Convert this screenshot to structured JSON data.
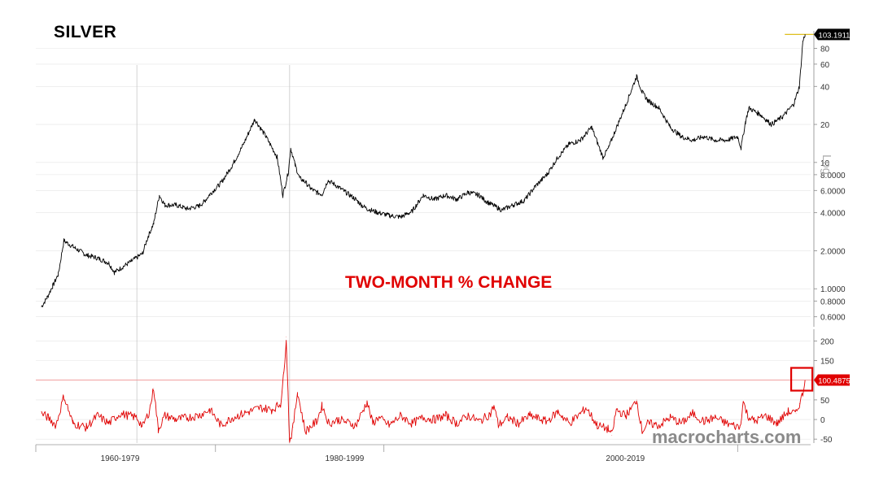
{
  "title": "SILVER",
  "subtitle": "TWO-MONTH % CHANGE",
  "watermark": "macrocharts.com",
  "scale_label": "Log",
  "colors": {
    "price": "#000000",
    "change": "#e00000",
    "grid": "#e5e5e5",
    "last_price_line": "#d9b600",
    "highlight_box": "#e00000"
  },
  "chart_data": [
    {
      "type": "line",
      "name": "Silver price",
      "yscale": "log",
      "ylim": [
        0.5,
        110
      ],
      "yticks": [
        {
          "v": 80,
          "label": "80"
        },
        {
          "v": 60,
          "label": "60"
        },
        {
          "v": 40,
          "label": "40"
        },
        {
          "v": 20,
          "label": "20"
        },
        {
          "v": 10,
          "label": "10"
        },
        {
          "v": 8,
          "label": "8.0000"
        },
        {
          "v": 6,
          "label": "6.0000"
        },
        {
          "v": 4,
          "label": "4.0000"
        },
        {
          "v": 2,
          "label": "2.0000"
        },
        {
          "v": 1,
          "label": "1.0000"
        },
        {
          "v": 0.8,
          "label": "0.8000"
        },
        {
          "v": 0.6,
          "label": "0.6000"
        }
      ],
      "last_value_label": "103.1911",
      "last_value": 103.19,
      "x": [
        1958.0,
        1958.5,
        1959.0,
        1959.5,
        1960.0,
        1961.0,
        1962.0,
        1963.0,
        1964.0,
        1964.5,
        1966.0,
        1967.0,
        1967.5,
        1968.0,
        1968.5,
        1969.0,
        1970.0,
        1971.0,
        1972.0,
        1972.5,
        1973.0,
        1974.0,
        1975.0,
        1976.0,
        1977.0,
        1978.0,
        1979.0,
        1979.5,
        1980.0,
        1980.2,
        1980.6,
        1981.0,
        1981.5,
        1982.0,
        1982.5,
        1983.0,
        1983.5,
        1984.0,
        1985.0,
        1986.0,
        1986.5,
        1987.0,
        1988.0,
        1989.0,
        1990.0,
        1991.0,
        1992.0,
        1993.0,
        1994.0,
        1995.0,
        1996.0,
        1997.0,
        1997.5,
        1998.0,
        1999.0,
        2000.0,
        2001.0,
        2002.0,
        2003.0,
        2004.0,
        2005.0,
        2006.0,
        2007.0,
        2008.0,
        2008.5,
        2009.0,
        2010.0,
        2011.0,
        2011.5,
        2012.0,
        2013.0,
        2014.0,
        2015.0,
        2016.0,
        2017.0,
        2018.0,
        2019.0,
        2020.0,
        2020.3,
        2020.7,
        2021.0,
        2022.0,
        2023.0,
        2024.0,
        2025.0,
        2025.5,
        2025.8,
        2026.0
      ],
      "values": [
        0.72,
        0.85,
        1.05,
        1.3,
        2.4,
        2.1,
        1.85,
        1.75,
        1.6,
        1.35,
        1.65,
        1.9,
        2.6,
        3.3,
        5.5,
        4.6,
        4.6,
        4.3,
        4.5,
        4.9,
        5.6,
        6.9,
        9.5,
        14,
        22,
        16,
        11,
        5.5,
        8.5,
        13,
        9.5,
        7.5,
        7.0,
        6.2,
        5.8,
        5.6,
        7.2,
        6.8,
        5.9,
        5.1,
        4.6,
        4.3,
        4.0,
        3.8,
        3.7,
        4.1,
        5.5,
        5.1,
        5.5,
        5.1,
        5.8,
        5.5,
        5.0,
        4.7,
        4.2,
        4.6,
        5.0,
        6.5,
        8.0,
        11,
        14,
        15,
        19,
        11,
        13,
        17,
        28,
        48,
        36,
        31,
        27,
        19,
        16,
        15,
        16,
        15,
        15,
        16,
        13,
        21,
        27,
        24,
        20,
        23,
        29,
        40,
        90,
        103
      ]
    },
    {
      "type": "line",
      "name": "Two-month % change",
      "ylim": [
        -60,
        230
      ],
      "yticks": [
        {
          "v": 200,
          "label": "200"
        },
        {
          "v": 150,
          "label": "150"
        },
        {
          "v": 100,
          "label": "100"
        },
        {
          "v": 50,
          "label": "50"
        },
        {
          "v": 0,
          "label": "0"
        },
        {
          "v": -50,
          "label": "-50"
        }
      ],
      "last_value_label": "100.4875",
      "last_value": 100.49,
      "x": [
        1958.0,
        1958.6,
        1959.3,
        1960.0,
        1960.8,
        1962.0,
        1963.0,
        1964.0,
        1965.0,
        1966.5,
        1967.0,
        1967.6,
        1968.0,
        1968.4,
        1969.0,
        1970.0,
        1971.0,
        1972.0,
        1973.0,
        1974.0,
        1975.0,
        1976.5,
        1977.5,
        1978.5,
        1979.3,
        1979.6,
        1979.8,
        1980.1,
        1980.4,
        1980.8,
        1981.5,
        1982.5,
        1983.0,
        1983.6,
        1984.5,
        1986.0,
        1987.0,
        1987.5,
        1988.0,
        1989.0,
        1990.0,
        1991.0,
        1992.0,
        1993.0,
        1994.0,
        1995.0,
        1996.0,
        1997.0,
        1998.0,
        1998.3,
        1998.7,
        1999.5,
        2000.5,
        2001.5,
        2003.0,
        2004.0,
        2005.0,
        2006.0,
        2006.5,
        2007.5,
        2008.5,
        2008.8,
        2009.2,
        2010.0,
        2010.5,
        2011.0,
        2011.5,
        2012.0,
        2013.0,
        2014.0,
        2015.0,
        2016.0,
        2017.0,
        2018.0,
        2019.0,
        2020.2,
        2020.5,
        2020.9,
        2021.5,
        2022.5,
        2023.5,
        2024.5,
        2025.2,
        2025.5,
        2025.8,
        2026.0
      ],
      "values": [
        15,
        5,
        -15,
        60,
        -10,
        -20,
        10,
        -10,
        15,
        5,
        -18,
        20,
        80,
        -25,
        10,
        0,
        5,
        10,
        25,
        -15,
        5,
        20,
        30,
        25,
        40,
        120,
        210,
        -60,
        -20,
        70,
        -30,
        -5,
        35,
        -10,
        0,
        -15,
        45,
        -10,
        5,
        -15,
        10,
        -10,
        5,
        0,
        10,
        -10,
        10,
        -5,
        15,
        35,
        -15,
        5,
        -10,
        10,
        -5,
        20,
        -10,
        15,
        30,
        -15,
        -25,
        -40,
        25,
        10,
        25,
        50,
        -30,
        -10,
        -15,
        5,
        -10,
        15,
        -5,
        5,
        -10,
        -20,
        45,
        10,
        -5,
        10,
        -10,
        20,
        15,
        40,
        65,
        100
      ]
    }
  ],
  "x_axis": {
    "xlim": [
      1957.5,
      2026.5
    ],
    "labels": [
      {
        "label": "1960-1979",
        "x": 1965
      },
      {
        "label": "1980-1999",
        "x": 1985
      },
      {
        "label": "2000-2019",
        "x": 2010
      }
    ],
    "separators": [
      1957.5,
      1973.5,
      1988.5,
      2020.0
    ]
  },
  "vertical_markers": [
    1966.5,
    1980.1
  ]
}
